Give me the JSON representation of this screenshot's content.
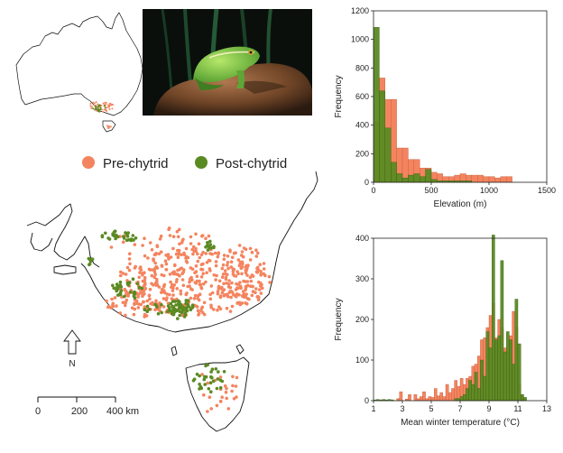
{
  "legend": {
    "pre_label": "Pre-chytrid",
    "post_label": "Post-chytrid",
    "pre_color": "#f4845f",
    "post_color": "#5a8a22"
  },
  "map": {
    "north_label": "N",
    "scale_ticks": [
      "0",
      "200",
      "400 km"
    ]
  },
  "chart_data": [
    {
      "type": "bar",
      "xlabel": "Elevation (m)",
      "ylabel": "Frequency",
      "xlim": [
        0,
        1500
      ],
      "ylim": [
        0,
        1200
      ],
      "xticks": [
        "0",
        "500",
        "1000",
        "1500"
      ],
      "yticks": [
        "0",
        "200",
        "400",
        "600",
        "800",
        "1000",
        "1200"
      ],
      "bin_width": 50,
      "series": [
        {
          "name": "Pre-chytrid",
          "bins": [
            [
              0,
              420
            ],
            [
              50,
              730
            ],
            [
              100,
              580
            ],
            [
              150,
              580
            ],
            [
              200,
              240
            ],
            [
              250,
              240
            ],
            [
              300,
              160
            ],
            [
              350,
              160
            ],
            [
              400,
              100
            ],
            [
              450,
              100
            ],
            [
              500,
              70
            ],
            [
              550,
              60
            ],
            [
              600,
              40
            ],
            [
              650,
              40
            ],
            [
              700,
              50
            ],
            [
              750,
              60
            ],
            [
              800,
              50
            ],
            [
              850,
              50
            ],
            [
              900,
              50
            ],
            [
              950,
              40
            ],
            [
              1000,
              40
            ],
            [
              1050,
              30
            ],
            [
              1100,
              40
            ],
            [
              1150,
              40
            ]
          ]
        },
        {
          "name": "Post-chytrid",
          "bins": [
            [
              0,
              1085
            ],
            [
              50,
              640
            ],
            [
              100,
              380
            ],
            [
              150,
              140
            ],
            [
              200,
              60
            ],
            [
              250,
              30
            ],
            [
              300,
              50
            ],
            [
              350,
              60
            ],
            [
              400,
              40
            ],
            [
              450,
              90
            ],
            [
              500,
              20
            ],
            [
              550,
              10
            ],
            [
              600,
              10
            ],
            [
              650,
              10
            ],
            [
              700,
              10
            ],
            [
              750,
              10
            ],
            [
              800,
              10
            ]
          ]
        }
      ]
    },
    {
      "type": "bar",
      "xlabel": "Mean winter temperature (°C)",
      "ylabel": "Frequency",
      "xlim": [
        1,
        13
      ],
      "ylim": [
        0,
        400
      ],
      "xticks": [
        "1",
        "3",
        "5",
        "7",
        "9",
        "11",
        "13"
      ],
      "yticks": [
        "0",
        "100",
        "200",
        "300",
        "400"
      ],
      "bin_width": 0.2,
      "series": [
        {
          "name": "Pre-chytrid",
          "bins": [
            [
              1.6,
              2
            ],
            [
              2.6,
              5
            ],
            [
              2.8,
              22
            ],
            [
              3.2,
              4
            ],
            [
              3.4,
              15
            ],
            [
              3.8,
              15
            ],
            [
              4.0,
              5
            ],
            [
              4.2,
              10
            ],
            [
              4.4,
              22
            ],
            [
              4.6,
              5
            ],
            [
              4.8,
              10
            ],
            [
              5.0,
              8
            ],
            [
              5.2,
              30
            ],
            [
              5.4,
              12
            ],
            [
              5.6,
              20
            ],
            [
              5.8,
              10
            ],
            [
              6.0,
              40
            ],
            [
              6.2,
              20
            ],
            [
              6.4,
              30
            ],
            [
              6.6,
              50
            ],
            [
              6.8,
              35
            ],
            [
              7.0,
              55
            ],
            [
              7.2,
              40
            ],
            [
              7.4,
              55
            ],
            [
              7.6,
              60
            ],
            [
              7.8,
              85
            ],
            [
              8.0,
              90
            ],
            [
              8.2,
              110
            ],
            [
              8.4,
              150
            ],
            [
              8.6,
              155
            ],
            [
              8.8,
              180
            ],
            [
              9.0,
              210
            ],
            [
              9.2,
              240
            ],
            [
              9.4,
              155
            ],
            [
              9.6,
              200
            ],
            [
              9.8,
              180
            ],
            [
              10.0,
              130
            ],
            [
              10.2,
              120
            ],
            [
              10.4,
              160
            ],
            [
              10.6,
              220
            ],
            [
              10.8,
              180
            ],
            [
              11.0,
              40
            ],
            [
              11.2,
              15
            ]
          ]
        },
        {
          "name": "Post-chytrid",
          "bins": [
            [
              1.0,
              2
            ],
            [
              1.2,
              3
            ],
            [
              1.4,
              2
            ],
            [
              1.6,
              3
            ],
            [
              1.8,
              2
            ],
            [
              2.0,
              3
            ],
            [
              2.2,
              2
            ],
            [
              6.6,
              5
            ],
            [
              6.8,
              5
            ],
            [
              7.0,
              10
            ],
            [
              7.2,
              15
            ],
            [
              7.4,
              30
            ],
            [
              7.6,
              50
            ],
            [
              7.8,
              40
            ],
            [
              8.0,
              70
            ],
            [
              8.2,
              30
            ],
            [
              8.4,
              100
            ],
            [
              8.6,
              60
            ],
            [
              8.8,
              170
            ],
            [
              9.0,
              130
            ],
            [
              9.2,
              408
            ],
            [
              9.4,
              150
            ],
            [
              9.6,
              160
            ],
            [
              9.8,
              345
            ],
            [
              10.0,
              120
            ],
            [
              10.2,
              170
            ],
            [
              10.4,
              150
            ],
            [
              10.6,
              90
            ],
            [
              10.8,
              250
            ],
            [
              11.0,
              140
            ],
            [
              11.2,
              15
            ],
            [
              11.4,
              8
            ]
          ]
        }
      ]
    }
  ]
}
